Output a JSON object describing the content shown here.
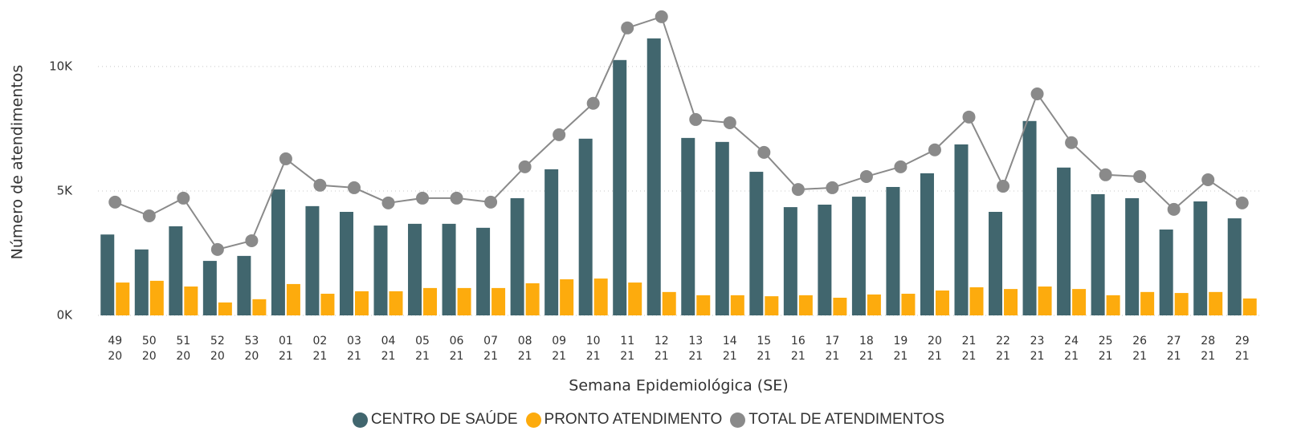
{
  "chart_data": {
    "type": "bar",
    "x_label": "Semana Epidemiológica (SE)",
    "y_label": "Número de atendimentos",
    "categories": [
      "49\n20",
      "50\n20",
      "51\n20",
      "52\n20",
      "53\n20",
      "01\n21",
      "02\n21",
      "03\n21",
      "04\n21",
      "05\n21",
      "06\n21",
      "07\n21",
      "08\n21",
      "09\n21",
      "10\n21",
      "11\n21",
      "12\n21",
      "13\n21",
      "14\n21",
      "15\n21",
      "16\n21",
      "17\n21",
      "18\n21",
      "19\n21",
      "20\n21",
      "21\n21",
      "22\n21",
      "23\n21",
      "24\n21",
      "25\n21",
      "26\n21",
      "27\n21",
      "28\n21",
      "29\n21"
    ],
    "series": [
      {
        "name": "CENTRO DE SAÚDE",
        "color": "#41666e",
        "type": "bar",
        "values": [
          3250,
          2650,
          3580,
          2190,
          2390,
          5060,
          4390,
          4160,
          3610,
          3680,
          3680,
          3520,
          4710,
          5870,
          7100,
          10260,
          11130,
          7130,
          6970,
          5770,
          4350,
          4450,
          4770,
          5160,
          5710,
          6870,
          4160,
          7810,
          5940,
          4870,
          4710,
          3450,
          4580,
          3900
        ]
      },
      {
        "name": "PRONTO ATENDIMENTO",
        "color": "#fdab0d",
        "type": "bar",
        "values": [
          1320,
          1390,
          1160,
          520,
          650,
          1260,
          870,
          970,
          970,
          1100,
          1100,
          1100,
          1290,
          1450,
          1480,
          1320,
          940,
          810,
          810,
          770,
          810,
          710,
          840,
          870,
          1000,
          1130,
          1060,
          1160,
          1060,
          810,
          940,
          900,
          940,
          680
        ]
      },
      {
        "name": "TOTAL DE ATENDIMENTOS",
        "color": "#8a8a8a",
        "type": "line",
        "values": [
          4550,
          4000,
          4710,
          2650,
          3000,
          6290,
          5230,
          5130,
          4520,
          4710,
          4710,
          4550,
          5970,
          7260,
          8520,
          11550,
          12000,
          7870,
          7740,
          6550,
          5060,
          5130,
          5580,
          5970,
          6650,
          7970,
          5190,
          8900,
          6940,
          5650,
          5580,
          4260,
          5450,
          4520
        ]
      }
    ],
    "ylim": [
      0,
      12350
    ],
    "yticks": [
      {
        "value": 0,
        "label": "0K"
      },
      {
        "value": 5000,
        "label": "5K"
      },
      {
        "value": 10000,
        "label": "10K"
      }
    ],
    "grid": true
  }
}
